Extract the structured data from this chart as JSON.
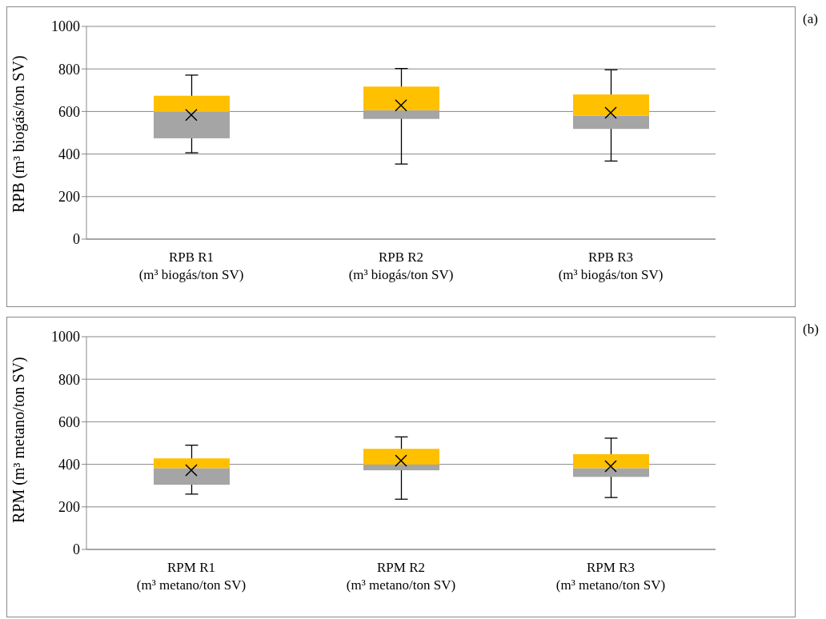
{
  "chart_data": [
    {
      "type": "box",
      "categories": [
        "RPB R1\n(m³ biogás/ton SV)",
        "RPB R2\n(m³ biogás/ton SV)",
        "RPB R3\n(m³ biogás/ton SV)"
      ],
      "ylabel": "RPB (m³ biogás/ton SV)",
      "ylim": [
        0,
        1000
      ],
      "yticks": [
        0,
        200,
        400,
        600,
        800,
        1000
      ],
      "grid": "y",
      "marker": "cross",
      "color": "#ffc000",
      "colors": [
        "#a5a5a5",
        "#a5a5a5",
        "#a5a5a5"
      ],
      "boxes": [
        {
          "low": 406,
          "q1": 474,
          "median": 598,
          "q3": 674,
          "high": 771,
          "mean": 584
        },
        {
          "low": 353,
          "q1": 565,
          "median": 606,
          "q3": 717,
          "high": 802,
          "mean": 629
        },
        {
          "low": 367,
          "q1": 518,
          "median": 581,
          "q3": 680,
          "high": 796,
          "mean": 594
        }
      ],
      "annotations": [
        "(a)"
      ]
    },
    {
      "type": "box",
      "categories": [
        "RPM R1\n(m³ metano/ton SV)",
        "RPM R2\n(m³ metano/ton SV)",
        "RPM R3\n(m³ metano/ton SV)"
      ],
      "ylabel": "RPM (m³ metano/ton SV)",
      "ylim": [
        0,
        1000
      ],
      "yticks": [
        0,
        200,
        400,
        600,
        800,
        1000
      ],
      "grid": "y",
      "marker": "cross",
      "color": "#ffc000",
      "colors": [
        "#a5a5a5",
        "#a5a5a5",
        "#a5a5a5"
      ],
      "boxes": [
        {
          "low": 260,
          "q1": 304,
          "median": 382,
          "q3": 428,
          "high": 490,
          "mean": 372
        },
        {
          "low": 236,
          "q1": 372,
          "median": 399,
          "q3": 473,
          "high": 529,
          "mean": 417
        },
        {
          "low": 244,
          "q1": 341,
          "median": 382,
          "q3": 448,
          "high": 523,
          "mean": 391
        }
      ],
      "annotations": [
        "(b)"
      ]
    }
  ]
}
